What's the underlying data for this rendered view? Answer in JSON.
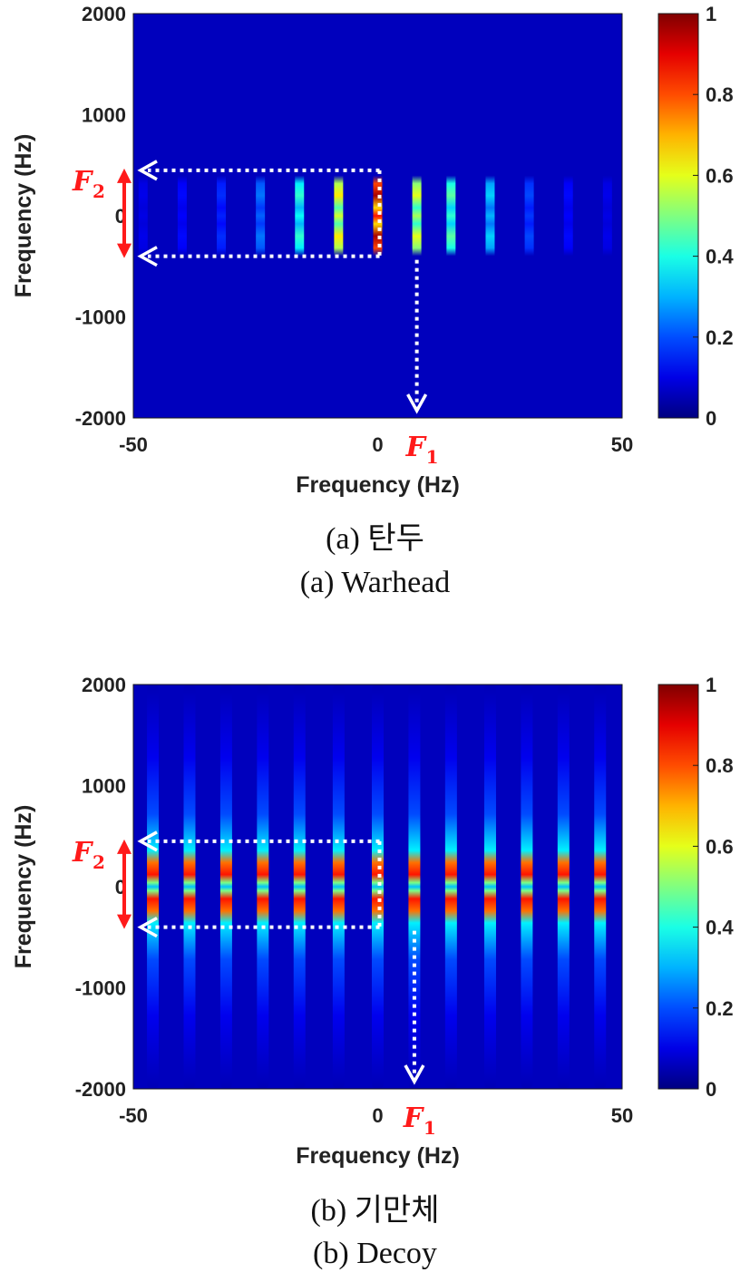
{
  "chart_data": [
    {
      "type": "heatmap",
      "panel": "warhead",
      "xlabel": "Frequency (Hz)",
      "ylabel": "Frequency (Hz)",
      "xlim": [
        -50,
        50
      ],
      "ylim": [
        -2000,
        2000
      ],
      "x_ticks": [
        "-50",
        "0",
        "50"
      ],
      "y_ticks": [
        "2000",
        "1000",
        "0",
        "-1000",
        "-2000"
      ],
      "colorbar": {
        "min": 0,
        "max": 1,
        "ticks": [
          "1",
          "0.8",
          "0.6",
          "0.4",
          "0.2",
          "0"
        ],
        "colormap": "jet"
      },
      "lines": [
        {
          "x": -48,
          "peak": 0.05
        },
        {
          "x": -40,
          "peak": 0.08
        },
        {
          "x": -32,
          "peak": 0.12
        },
        {
          "x": -24,
          "peak": 0.2
        },
        {
          "x": -16,
          "peak": 0.4
        },
        {
          "x": -8,
          "peak": 0.65
        },
        {
          "x": 0,
          "peak": 1.0
        },
        {
          "x": 8,
          "peak": 0.6
        },
        {
          "x": 15,
          "peak": 0.45
        },
        {
          "x": 23,
          "peak": 0.3
        },
        {
          "x": 31,
          "peak": 0.15
        },
        {
          "x": 39,
          "peak": 0.08
        },
        {
          "x": 47,
          "peak": 0.05
        }
      ],
      "band_y": [
        -400,
        450
      ],
      "annotations": {
        "f2_base": "F",
        "f2_sub": "2",
        "f1_base": "F",
        "f1_sub": "1"
      },
      "caption_ko": "(a)  탄두",
      "caption_en": "(a)  Warhead"
    },
    {
      "type": "heatmap",
      "panel": "decoy",
      "xlabel": "Frequency (Hz)",
      "ylabel": "Frequency (Hz)",
      "xlim": [
        -50,
        50
      ],
      "ylim": [
        -2000,
        2000
      ],
      "x_ticks": [
        "-50",
        "0",
        "50"
      ],
      "y_ticks": [
        "2000",
        "1000",
        "0",
        "-1000",
        "-2000"
      ],
      "colorbar": {
        "min": 0,
        "max": 1,
        "ticks": [
          "1",
          "0.8",
          "0.6",
          "0.4",
          "0.2",
          "0"
        ],
        "colormap": "jet"
      },
      "lines": [
        {
          "x": -46,
          "peak": 0.9
        },
        {
          "x": -38.5,
          "peak": 0.9
        },
        {
          "x": -31,
          "peak": 0.9
        },
        {
          "x": -23.5,
          "peak": 0.9
        },
        {
          "x": -16,
          "peak": 0.9
        },
        {
          "x": -8,
          "peak": 0.9
        },
        {
          "x": 0,
          "peak": 0.9
        },
        {
          "x": 7.5,
          "peak": 0.9
        },
        {
          "x": 15,
          "peak": 0.9
        },
        {
          "x": 23,
          "peak": 0.9
        },
        {
          "x": 30.5,
          "peak": 0.9
        },
        {
          "x": 38,
          "peak": 0.9
        },
        {
          "x": 45.5,
          "peak": 0.9
        }
      ],
      "band_y": [
        -400,
        450
      ],
      "annotations": {
        "f2_base": "F",
        "f2_sub": "2",
        "f1_base": "F",
        "f1_sub": "1"
      },
      "caption_ko": "(b)  기만체",
      "caption_en": "(b)  Decoy"
    }
  ]
}
